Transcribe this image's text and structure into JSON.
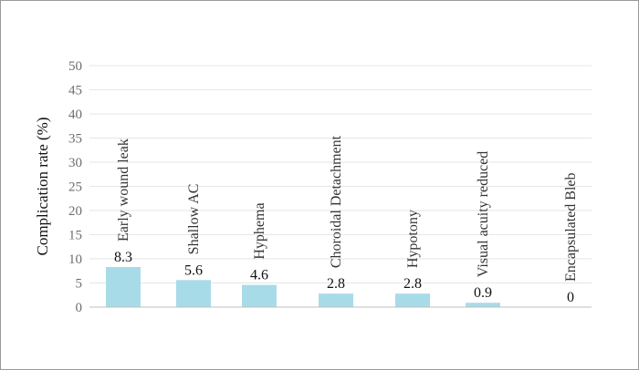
{
  "chart_data": {
    "type": "bar",
    "title": "",
    "xlabel": "",
    "ylabel": "Complication rate (%)",
    "ylim": [
      0,
      50
    ],
    "yticks": [
      0,
      5,
      10,
      15,
      20,
      25,
      30,
      35,
      40,
      45,
      50
    ],
    "grid": true,
    "bar_color": "#a8dbe8",
    "categories": [
      "Early wound leak",
      "Shallow AC",
      "Hyphema",
      "Choroidal Detachment",
      "Hypotony",
      "Visual acuity reduced",
      "Encapsulated Bleb"
    ],
    "values": [
      8.3,
      5.6,
      4.6,
      2.8,
      2.8,
      0.9,
      0
    ],
    "value_labels": [
      "8.3",
      "5.6",
      "4.6",
      "2.8",
      "2.8",
      "0.9",
      "0"
    ]
  }
}
